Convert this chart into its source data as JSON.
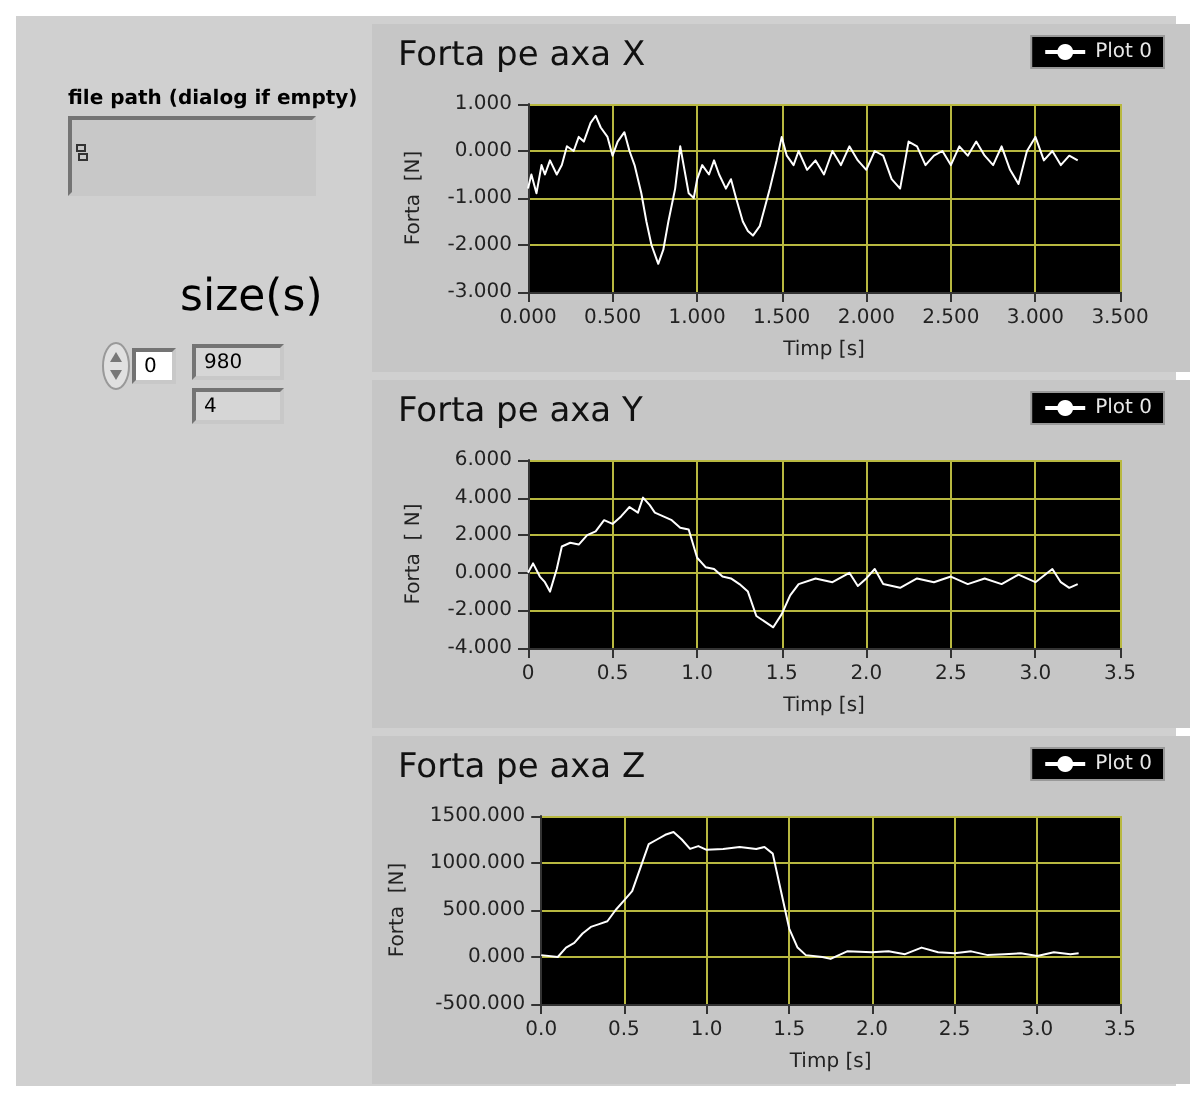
{
  "chart_data": [
    {
      "type": "other",
      "annotations": [
        "file path (dialog if empty)",
        "size(s)",
        "0",
        "980",
        "4"
      ]
    },
    {
      "type": "line",
      "title": "Forta pe axa X",
      "xlabel": "Timp [s]",
      "ylabel": "Forta  [N]",
      "legend": "top right",
      "grid": true,
      "marker": "none",
      "line_style": "solid",
      "xlim": [
        0,
        3.5
      ],
      "xticks": [
        {
          "value": 0,
          "label": "0.000"
        },
        {
          "value": 0.5,
          "label": "0.500"
        },
        {
          "value": 1,
          "label": "1.000"
        },
        {
          "value": 1.5,
          "label": "1.500"
        },
        {
          "value": 2,
          "label": "2.000"
        },
        {
          "value": 2.5,
          "label": "2.500"
        },
        {
          "value": 3,
          "label": "3.000"
        },
        {
          "value": 3.5,
          "label": "3.500"
        }
      ],
      "ylim": [
        -3,
        1
      ],
      "yticks": [
        {
          "value": -3,
          "label": "-3.000"
        },
        {
          "value": -2,
          "label": "-2.000"
        },
        {
          "value": -1,
          "label": "-1.000"
        },
        {
          "value": 0,
          "label": "0.000"
        },
        {
          "value": 1,
          "label": "1.000"
        }
      ],
      "x": [
        0,
        0.02,
        0.05,
        0.08,
        0.1,
        0.13,
        0.17,
        0.2,
        0.23,
        0.27,
        0.3,
        0.33,
        0.37,
        0.4,
        0.43,
        0.47,
        0.5,
        0.53,
        0.57,
        0.6,
        0.63,
        0.67,
        0.7,
        0.73,
        0.77,
        0.8,
        0.83,
        0.87,
        0.9,
        0.92,
        0.95,
        0.98,
        1,
        1.03,
        1.07,
        1.1,
        1.13,
        1.17,
        1.2,
        1.23,
        1.27,
        1.3,
        1.33,
        1.37,
        1.4,
        1.43,
        1.47,
        1.5,
        1.53,
        1.57,
        1.6,
        1.65,
        1.7,
        1.75,
        1.8,
        1.85,
        1.9,
        1.95,
        2,
        2.05,
        2.1,
        2.15,
        2.2,
        2.25,
        2.3,
        2.35,
        2.4,
        2.45,
        2.5,
        2.55,
        2.6,
        2.65,
        2.7,
        2.75,
        2.8,
        2.85,
        2.9,
        2.95,
        3,
        3.05,
        3.1,
        3.15,
        3.2,
        3.25
      ],
      "series": [
        {
          "name": "Plot 0",
          "color": "#ffffff",
          "values": [
            -0.8,
            -0.5,
            -0.9,
            -0.3,
            -0.5,
            -0.2,
            -0.5,
            -0.3,
            0.1,
            0,
            0.3,
            0.2,
            0.6,
            0.75,
            0.5,
            0.3,
            -0.1,
            0.2,
            0.4,
            0,
            -0.3,
            -0.9,
            -1.5,
            -2,
            -2.4,
            -2.1,
            -1.5,
            -0.8,
            0.1,
            -0.3,
            -0.9,
            -1,
            -0.6,
            -0.3,
            -0.5,
            -0.2,
            -0.5,
            -0.8,
            -0.6,
            -1,
            -1.5,
            -1.7,
            -1.8,
            -1.6,
            -1.2,
            -0.8,
            -0.2,
            0.3,
            -0.1,
            -0.3,
            0,
            -0.4,
            -0.2,
            -0.5,
            0,
            -0.3,
            0.1,
            -0.2,
            -0.4,
            0,
            -0.1,
            -0.6,
            -0.8,
            0.2,
            0.1,
            -0.3,
            -0.1,
            0,
            -0.3,
            0.1,
            -0.1,
            0.2,
            -0.1,
            -0.3,
            0.1,
            -0.4,
            -0.7,
            0,
            0.3,
            -0.2,
            0,
            -0.3,
            -0.1,
            -0.2
          ]
        }
      ]
    },
    {
      "type": "line",
      "title": "Forta pe axa Y",
      "xlabel": "Timp [s]",
      "ylabel": "Forta  [ N]",
      "legend": "top right",
      "grid": true,
      "marker": "none",
      "line_style": "solid",
      "xlim": [
        0,
        3.5
      ],
      "xticks": [
        0,
        0.5,
        {
          "value": 1,
          "label": "1.0"
        },
        1.5,
        {
          "value": 2,
          "label": "2.0"
        },
        2.5,
        {
          "value": 3,
          "label": "3.0"
        },
        3.5
      ],
      "ylim": [
        -4,
        6
      ],
      "yticks": [
        {
          "value": -4,
          "label": "-4.000"
        },
        {
          "value": -2,
          "label": "-2.000"
        },
        {
          "value": 0,
          "label": "0.000"
        },
        {
          "value": 2,
          "label": "2.000"
        },
        {
          "value": 4,
          "label": "4.000"
        },
        {
          "value": 6,
          "label": "6.000"
        }
      ],
      "x": [
        0,
        0.03,
        0.07,
        0.1,
        0.13,
        0.17,
        0.2,
        0.25,
        0.3,
        0.35,
        0.4,
        0.45,
        0.5,
        0.55,
        0.6,
        0.65,
        0.68,
        0.72,
        0.75,
        0.8,
        0.85,
        0.9,
        0.95,
        1,
        1.05,
        1.1,
        1.15,
        1.2,
        1.25,
        1.3,
        1.35,
        1.4,
        1.45,
        1.5,
        1.55,
        1.6,
        1.7,
        1.8,
        1.9,
        1.95,
        2,
        2.05,
        2.1,
        2.2,
        2.3,
        2.4,
        2.5,
        2.6,
        2.7,
        2.8,
        2.9,
        3,
        3.1,
        3.15,
        3.2,
        3.25
      ],
      "series": [
        {
          "name": "Plot 0",
          "color": "#ffffff",
          "values": [
            0,
            0.5,
            -0.2,
            -0.5,
            -1,
            0.2,
            1.4,
            1.6,
            1.5,
            2,
            2.2,
            2.8,
            2.6,
            3,
            3.5,
            3.2,
            4,
            3.6,
            3.2,
            3,
            2.8,
            2.4,
            2.3,
            0.8,
            0.3,
            0.2,
            -0.2,
            -0.3,
            -0.6,
            -1,
            -2.3,
            -2.6,
            -2.9,
            -2.2,
            -1.2,
            -0.6,
            -0.3,
            -0.5,
            0,
            -0.7,
            -0.3,
            0.2,
            -0.6,
            -0.8,
            -0.3,
            -0.5,
            -0.2,
            -0.6,
            -0.3,
            -0.6,
            -0.1,
            -0.5,
            0.2,
            -0.5,
            -0.8,
            -0.6
          ]
        }
      ]
    },
    {
      "type": "line",
      "title": "Forta pe axa Z",
      "xlabel": "Timp [s]",
      "ylabel": "Forta  [N]",
      "legend": "top right",
      "grid": true,
      "marker": "none",
      "line_style": "solid",
      "xlim": [
        0,
        3.5
      ],
      "xticks": [
        {
          "value": 0,
          "label": "0.0"
        },
        0.5,
        {
          "value": 1,
          "label": "1.0"
        },
        1.5,
        {
          "value": 2,
          "label": "2.0"
        },
        2.5,
        {
          "value": 3,
          "label": "3.0"
        },
        3.5
      ],
      "ylim": [
        -500,
        1500
      ],
      "yticks": [
        {
          "value": -500,
          "label": "-500.000"
        },
        {
          "value": 0,
          "label": "0.000"
        },
        {
          "value": 500,
          "label": "500.000"
        },
        {
          "value": 1000,
          "label": "1000.000"
        },
        {
          "value": 1500,
          "label": "1500.000"
        }
      ],
      "x": [
        0,
        0.1,
        0.15,
        0.2,
        0.25,
        0.3,
        0.35,
        0.4,
        0.45,
        0.5,
        0.55,
        0.6,
        0.65,
        0.7,
        0.75,
        0.8,
        0.85,
        0.9,
        0.95,
        1,
        1.1,
        1.2,
        1.3,
        1.35,
        1.4,
        1.45,
        1.5,
        1.55,
        1.6,
        1.7,
        1.75,
        1.85,
        2,
        2.1,
        2.2,
        2.3,
        2.4,
        2.5,
        2.6,
        2.7,
        2.8,
        2.9,
        3,
        3.1,
        3.2,
        3.25
      ],
      "series": [
        {
          "name": "Plot 0",
          "color": "#ffffff",
          "values": [
            20,
            0,
            100,
            150,
            250,
            320,
            350,
            380,
            500,
            600,
            700,
            950,
            1200,
            1250,
            1300,
            1330,
            1250,
            1150,
            1180,
            1140,
            1150,
            1170,
            1150,
            1170,
            1100,
            700,
            300,
            100,
            20,
            0,
            -20,
            60,
            50,
            60,
            30,
            100,
            50,
            40,
            60,
            20,
            30,
            40,
            10,
            50,
            30,
            40
          ]
        }
      ]
    }
  ]
}
